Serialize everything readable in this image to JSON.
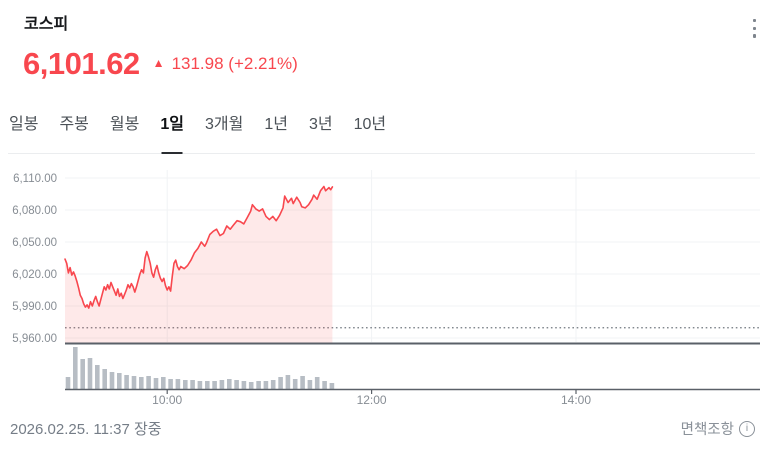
{
  "header": {
    "title": "코스피",
    "price": "6,101.62",
    "up_arrow": "▲",
    "change": "131.98 (+2.21%)"
  },
  "tabs": {
    "items": [
      {
        "label": "일봉",
        "selected": false
      },
      {
        "label": "주봉",
        "selected": false
      },
      {
        "label": "월봉",
        "selected": false
      },
      {
        "label": "1일",
        "selected": true
      },
      {
        "label": "3개월",
        "selected": false
      },
      {
        "label": "1년",
        "selected": false
      },
      {
        "label": "3년",
        "selected": false
      },
      {
        "label": "10년",
        "selected": false
      }
    ]
  },
  "footer": {
    "datetime": "2026.02.25. 11:37 장중",
    "disclaimer": "면책조항",
    "info_glyph": "i"
  },
  "colors": {
    "accent_red": "#f8474e",
    "area_fill": "rgba(248,71,78,0.12)",
    "volume_gray": "#b7bdc4",
    "axis_dark": "#5a6068",
    "grid": "#f1f3f5",
    "label_gray": "#878d94",
    "prev_close_dotted": "#70777f"
  },
  "chart_data": {
    "type": "area",
    "title": "코스피 1일 차트",
    "x_axis": {
      "start": "09:00",
      "end": "15:30",
      "ticks": [
        "10:00",
        "12:00",
        "14:00"
      ]
    },
    "y_axis": {
      "ticks": [
        6110,
        6080,
        6050,
        6020,
        5990,
        5960
      ],
      "decimals": 2
    },
    "prev_close": 5969.64,
    "last_update": "11:37",
    "session_status": "장중",
    "points_format": "[minutes_after_09:00, index_value]",
    "series": [
      {
        "name": "코스피",
        "points": [
          [
            0,
            6034
          ],
          [
            1,
            6030
          ],
          [
            2,
            6021
          ],
          [
            3,
            6026
          ],
          [
            4,
            6019
          ],
          [
            5,
            6022
          ],
          [
            6,
            6018
          ],
          [
            7,
            6013
          ],
          [
            8,
            6007
          ],
          [
            9,
            6000
          ],
          [
            10,
            5997
          ],
          [
            11,
            5992
          ],
          [
            12,
            5989
          ],
          [
            13,
            5991
          ],
          [
            14,
            5988
          ],
          [
            15,
            5994
          ],
          [
            16,
            5990
          ],
          [
            17,
            5995
          ],
          [
            18,
            5999
          ],
          [
            19,
            5994
          ],
          [
            20,
            5990
          ],
          [
            21,
            5996
          ],
          [
            22,
            6002
          ],
          [
            23,
            6008
          ],
          [
            24,
            6005
          ],
          [
            25,
            6010
          ],
          [
            26,
            6006
          ],
          [
            27,
            6012
          ],
          [
            28,
            6008
          ],
          [
            29,
            6004
          ],
          [
            30,
            6000
          ],
          [
            31,
            6006
          ],
          [
            32,
            5999
          ],
          [
            33,
            6002
          ],
          [
            34,
            5997
          ],
          [
            35,
            6001
          ],
          [
            36,
            6005
          ],
          [
            37,
            6010
          ],
          [
            38,
            6007
          ],
          [
            39,
            6011
          ],
          [
            40,
            6008
          ],
          [
            41,
            6003
          ],
          [
            42,
            6008
          ],
          [
            43,
            6014
          ],
          [
            44,
            6020
          ],
          [
            45,
            6024
          ],
          [
            46,
            6021
          ],
          [
            47,
            6035
          ],
          [
            48,
            6041
          ],
          [
            49,
            6036
          ],
          [
            50,
            6030
          ],
          [
            51,
            6021
          ],
          [
            52,
            6017
          ],
          [
            53,
            6024
          ],
          [
            54,
            6028
          ],
          [
            55,
            6021
          ],
          [
            56,
            6016
          ],
          [
            57,
            6013
          ],
          [
            58,
            6016
          ],
          [
            59,
            6009
          ],
          [
            60,
            6005
          ],
          [
            61,
            6008
          ],
          [
            62,
            6004
          ],
          [
            63,
            6018
          ],
          [
            64,
            6030
          ],
          [
            65,
            6033
          ],
          [
            66,
            6027
          ],
          [
            67,
            6024
          ],
          [
            68,
            6027
          ],
          [
            70,
            6025
          ],
          [
            72,
            6028
          ],
          [
            74,
            6033
          ],
          [
            76,
            6040
          ],
          [
            78,
            6044
          ],
          [
            80,
            6050
          ],
          [
            82,
            6046
          ],
          [
            83,
            6049
          ],
          [
            85,
            6057
          ],
          [
            87,
            6060
          ],
          [
            89,
            6062
          ],
          [
            91,
            6056
          ],
          [
            93,
            6058
          ],
          [
            95,
            6065
          ],
          [
            97,
            6062
          ],
          [
            99,
            6066
          ],
          [
            101,
            6070
          ],
          [
            103,
            6069
          ],
          [
            105,
            6067
          ],
          [
            107,
            6073
          ],
          [
            109,
            6079
          ],
          [
            110,
            6085
          ],
          [
            112,
            6081
          ],
          [
            114,
            6079
          ],
          [
            116,
            6081
          ],
          [
            118,
            6074
          ],
          [
            120,
            6071
          ],
          [
            122,
            6074
          ],
          [
            124,
            6070
          ],
          [
            126,
            6075
          ],
          [
            128,
            6082
          ],
          [
            129,
            6093
          ],
          [
            131,
            6087
          ],
          [
            133,
            6091
          ],
          [
            134,
            6086
          ],
          [
            136,
            6092
          ],
          [
            138,
            6087
          ],
          [
            139,
            6083
          ],
          [
            141,
            6082
          ],
          [
            143,
            6085
          ],
          [
            145,
            6090
          ],
          [
            146,
            6094
          ],
          [
            148,
            6090
          ],
          [
            150,
            6098
          ],
          [
            152,
            6102
          ],
          [
            153,
            6098
          ],
          [
            155,
            6101
          ],
          [
            156,
            6099
          ],
          [
            157,
            6101.62
          ]
        ]
      }
    ],
    "volume": {
      "note": "relative intraday volume bars, left-to-right from 09:00 to 11:37",
      "relative_heights": [
        12,
        42,
        30,
        31,
        24,
        20,
        17,
        16,
        14,
        13,
        12,
        13,
        11,
        12,
        10,
        10,
        9,
        9,
        8,
        8,
        8,
        9,
        10,
        9,
        8,
        7,
        8,
        8,
        9,
        12,
        14,
        10,
        13,
        9,
        12,
        8,
        6
      ]
    }
  }
}
